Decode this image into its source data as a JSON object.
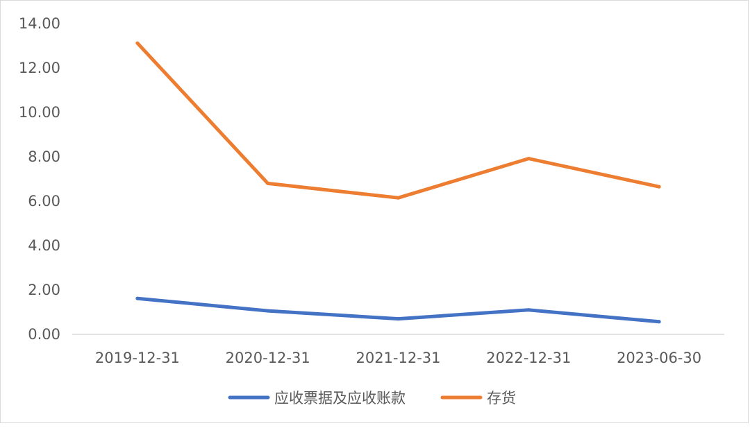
{
  "chart_data": {
    "type": "line",
    "title": "",
    "xlabel": "",
    "ylabel": "",
    "categories": [
      "2019-12-31",
      "2020-12-31",
      "2021-12-31",
      "2022-12-31",
      "2023-06-30"
    ],
    "ylim": [
      0,
      14
    ],
    "yticks": [
      "0.00",
      "2.00",
      "4.00",
      "6.00",
      "8.00",
      "10.00",
      "12.00",
      "14.00"
    ],
    "grid": false,
    "legend_position": "bottom",
    "series": [
      {
        "name": "应收票据及应收账款",
        "color": "#4472C4",
        "values": [
          1.62,
          1.06,
          0.7,
          1.1,
          0.57
        ]
      },
      {
        "name": "存货",
        "color": "#ED7D31",
        "values": [
          13.12,
          6.8,
          6.15,
          7.92,
          6.65
        ]
      }
    ]
  }
}
